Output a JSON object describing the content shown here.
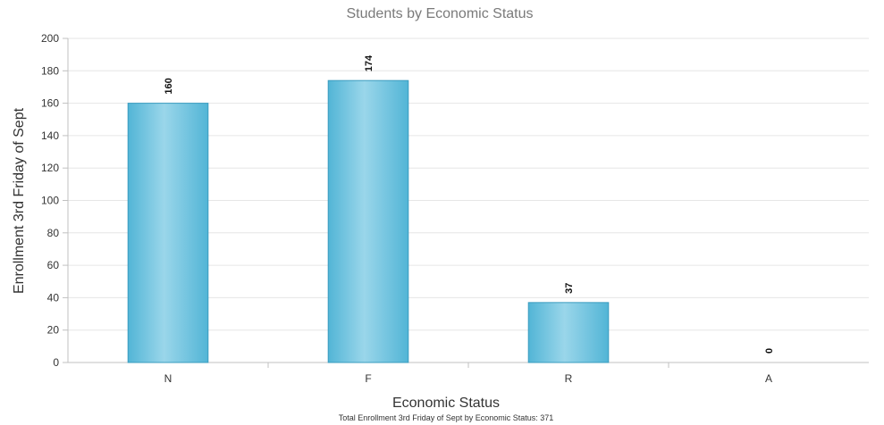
{
  "chart_data": {
    "type": "bar",
    "title": "Students by Economic Status",
    "xlabel": "Economic Status",
    "ylabel": "Enrollment 3rd Friday of Sept",
    "categories": [
      "N",
      "F",
      "R",
      "A"
    ],
    "values": [
      160,
      174,
      37,
      0
    ],
    "ylim": [
      0,
      200
    ],
    "yticks": [
      0,
      20,
      40,
      60,
      80,
      100,
      120,
      140,
      160,
      180,
      200
    ],
    "grid": true,
    "footnote": "Total Enrollment 3rd Friday of Sept by Economic Status: 371",
    "colors": {
      "bar_light": "#9ad6ea",
      "bar_mid": "#68c3e0",
      "bar_dark": "#52b5d6",
      "bar_stroke": "#3a9cbf"
    }
  }
}
